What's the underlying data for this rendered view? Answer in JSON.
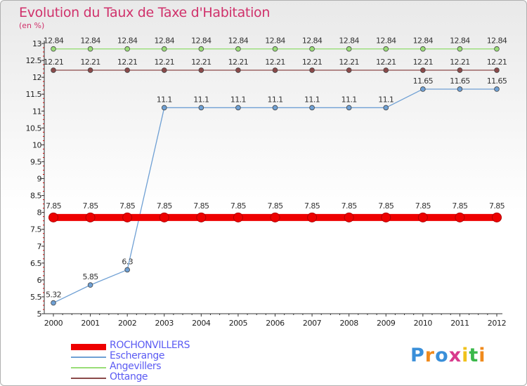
{
  "title": "Evolution du Taux de Taxe d'Habitation",
  "subtitle": "(en %)",
  "colors": {
    "title": "#d0316b",
    "legend_text": "#5b5bf3",
    "axis": "#333333",
    "grid_tick": "#cc0000"
  },
  "chart_data": {
    "type": "line",
    "title": "Evolution du Taux de Taxe d'Habitation",
    "subtitle": "(en %)",
    "x": [
      "2000",
      "2001",
      "2002",
      "2003",
      "2004",
      "2005",
      "2006",
      "2007",
      "2008",
      "2009",
      "2010",
      "2011",
      "2012"
    ],
    "yticks": [
      "5",
      "5.5",
      "6",
      "6.5",
      "7",
      "7.5",
      "8",
      "8.5",
      "9",
      "9.5",
      "10",
      "10.5",
      "11",
      "11.5",
      "12",
      "12.5",
      "13"
    ],
    "ylim": [
      5,
      13
    ],
    "legend_position": "bottom-left",
    "series": [
      {
        "name": "ROCHONVILLERS",
        "color": "#ee0000",
        "values": [
          7.85,
          7.85,
          7.85,
          7.85,
          7.85,
          7.85,
          7.85,
          7.85,
          7.85,
          7.85,
          7.85,
          7.85,
          7.85
        ],
        "labels": [
          "7.85",
          "7.85",
          "7.85",
          "7.85",
          "7.85",
          "7.85",
          "7.85",
          "7.85",
          "7.85",
          "7.85",
          "7.85",
          "7.85",
          "7.85"
        ]
      },
      {
        "name": "Escherange",
        "color": "#6fa0d4",
        "values": [
          5.32,
          5.85,
          6.3,
          11.1,
          11.1,
          11.1,
          11.1,
          11.1,
          11.1,
          11.1,
          11.65,
          11.65,
          11.65
        ],
        "labels": [
          "5.32",
          "5.85",
          "6.3",
          "11.1",
          "11.1",
          "11.1",
          "11.1",
          "11.1",
          "11.1",
          "11.1",
          "11.65",
          "11.65",
          "11.65"
        ]
      },
      {
        "name": "Angevillers",
        "color": "#99dd77",
        "values": [
          12.84,
          12.84,
          12.84,
          12.84,
          12.84,
          12.84,
          12.84,
          12.84,
          12.84,
          12.84,
          12.84,
          12.84,
          12.84
        ],
        "labels": [
          "12.84",
          "12.84",
          "12.84",
          "12.84",
          "12.84",
          "12.84",
          "12.84",
          "12.84",
          "12.84",
          "12.84",
          "12.84",
          "12.84",
          "12.84"
        ]
      },
      {
        "name": "Ottange",
        "color": "#8b4a4a",
        "values": [
          12.21,
          12.21,
          12.21,
          12.21,
          12.21,
          12.21,
          12.21,
          12.21,
          12.21,
          12.21,
          12.21,
          12.21,
          12.21
        ],
        "labels": [
          "12.21",
          "12.21",
          "12.21",
          "12.21",
          "12.21",
          "12.21",
          "12.21",
          "12.21",
          "12.21",
          "12.21",
          "12.21",
          "12.21",
          "12.21"
        ]
      }
    ]
  },
  "logo": {
    "text": "Proxiti",
    "letters": [
      {
        "ch": "P",
        "color": "#3a8fd9"
      },
      {
        "ch": "r",
        "color": "#f08a1c"
      },
      {
        "ch": "o",
        "color": "#3a8fd9"
      },
      {
        "ch": "x",
        "color": "#d83a8c"
      },
      {
        "ch": "i",
        "color": "#f0c21c"
      },
      {
        "ch": "t",
        "color": "#3ab84a"
      },
      {
        "ch": "i",
        "color": "#f08a1c"
      }
    ]
  }
}
